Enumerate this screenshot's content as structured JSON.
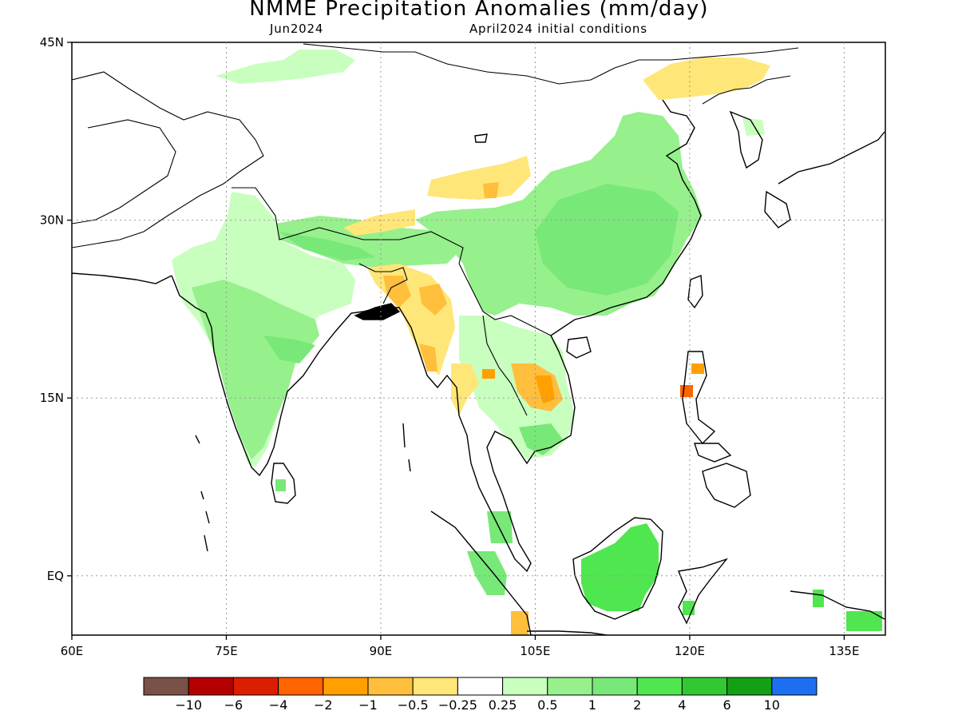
{
  "map": {
    "title": "NMME Precipitation Anomalies (mm/day)",
    "subtitle_left": "Jun2024",
    "subtitle_right": "April2024 initial conditions",
    "lat_ticks": [
      "45N",
      "30N",
      "15N",
      "EQ"
    ],
    "lon_ticks": [
      "60E",
      "75E",
      "90E",
      "105E",
      "120E",
      "135E"
    ],
    "extent": {
      "lon_min": 60,
      "lon_max": 139,
      "lat_min": -5,
      "lat_max": 45
    },
    "grid_lons": [
      75,
      90,
      105,
      120,
      135
    ],
    "grid_lats": [
      30,
      15,
      0
    ]
  },
  "colorbar": {
    "colors": [
      "#7a5146",
      "#b40000",
      "#dc1e00",
      "#ff6400",
      "#ffa000",
      "#ffbe3c",
      "#ffe678",
      "#ffffff",
      "#c8ffbe",
      "#96f08c",
      "#78e878",
      "#50e650",
      "#32c832",
      "#14a014",
      "#1e6ef0"
    ],
    "labels": [
      "−10",
      "−6",
      "−4",
      "−2",
      "−1",
      "−0.5",
      "−0.25",
      "0.25",
      "0.5",
      "1",
      "2",
      "4",
      "6",
      "10"
    ]
  },
  "fields": [
    {
      "region": "India",
      "level": "0.5",
      "color": "#96f08c"
    },
    {
      "region": "South China",
      "level": "1",
      "color": "#78e878"
    },
    {
      "region": "Borneo",
      "level": "2",
      "color": "#50e650"
    },
    {
      "region": "Myanmar",
      "level": "-0.5",
      "color": "#ffbe3c"
    },
    {
      "region": "Laos",
      "level": "-1",
      "color": "#ffa000"
    },
    {
      "region": "Tibet",
      "level": "-0.25",
      "color": "#ffe678"
    },
    {
      "region": "Inner Mongolia",
      "level": "-0.25",
      "color": "#ffe678"
    },
    {
      "region": "Luzon",
      "level": "-2",
      "color": "#ff6400"
    }
  ]
}
